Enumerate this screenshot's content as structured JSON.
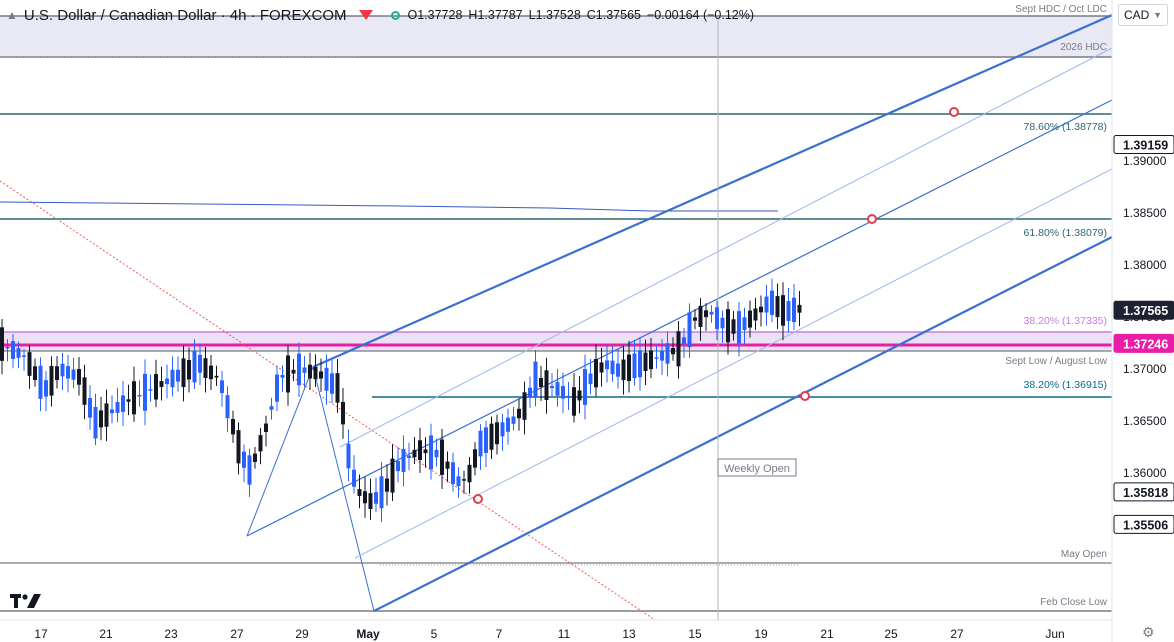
{
  "header": {
    "title": "U.S. Dollar / Canadian Dollar · 4h · FOREXCOM",
    "open": "O1.37728",
    "high": "H1.37787",
    "low": "L1.37528",
    "close": "C1.37565",
    "change": "−0.00164 (−0.12%)",
    "currency": "CAD"
  },
  "chart_data": {
    "type": "candlestick",
    "instrument": "U.S. Dollar / Canadian Dollar",
    "timeframe": "4h",
    "source": "FOREXCOM",
    "ylim": [
      1.3546,
      1.3952
    ],
    "price_ticks": [
      "1.36000",
      "1.36500",
      "1.37000",
      "1.37500",
      "1.38000",
      "1.38500",
      "1.39000"
    ],
    "date_ticks": [
      "17",
      "21",
      "23",
      "27",
      "29",
      "May",
      "5",
      "7",
      "11",
      "13",
      "15",
      "19",
      "21",
      "25",
      "27",
      "Jun"
    ],
    "levels": [
      {
        "label": "Sept HDC / Oct LDC",
        "price": 1.3942,
        "color": "#787b86"
      },
      {
        "label": "2026 HDC",
        "price": 1.3916,
        "color": "#787b86"
      },
      {
        "label": "78.60% (1.38778)",
        "price": 1.38778,
        "color": "#2e6670"
      },
      {
        "label": "61.80% (1.38079)",
        "price": 1.38079,
        "color": "#2e6670"
      },
      {
        "label": "38.20% (1.37335)",
        "price": 1.37335,
        "color": "#c77ee0"
      },
      {
        "label": "Sept Low / August Low",
        "price": 1.3719,
        "color": "#787b86"
      },
      {
        "label": "38.20% (1.36915)",
        "price": 1.36915,
        "color": "#0b6b8a"
      },
      {
        "label": "May Open",
        "price": 1.35818,
        "color": "#787b86"
      },
      {
        "label": "Feb Close Low",
        "price": 1.35506,
        "color": "#787b86"
      }
    ],
    "price_badges": [
      {
        "text": "1.39159",
        "price": 1.39159,
        "bg": "#ffffff",
        "fg": "#131722",
        "border": "#131722"
      },
      {
        "text": "1.37565",
        "price": 1.37565,
        "bg": "#1e2230",
        "fg": "#ffffff",
        "border": "#1e2230"
      },
      {
        "text": "1.37246",
        "price": 1.37246,
        "bg": "#e91ea8",
        "fg": "#ffffff",
        "border": "#e91ea8"
      },
      {
        "text": "1.35818",
        "price": 1.35818,
        "bg": "#ffffff",
        "fg": "#131722",
        "border": "#131722"
      },
      {
        "text": "1.35506",
        "price": 1.35506,
        "bg": "#ffffff",
        "fg": "#131722",
        "border": "#131722"
      }
    ],
    "annotation": "Weekly Open"
  }
}
